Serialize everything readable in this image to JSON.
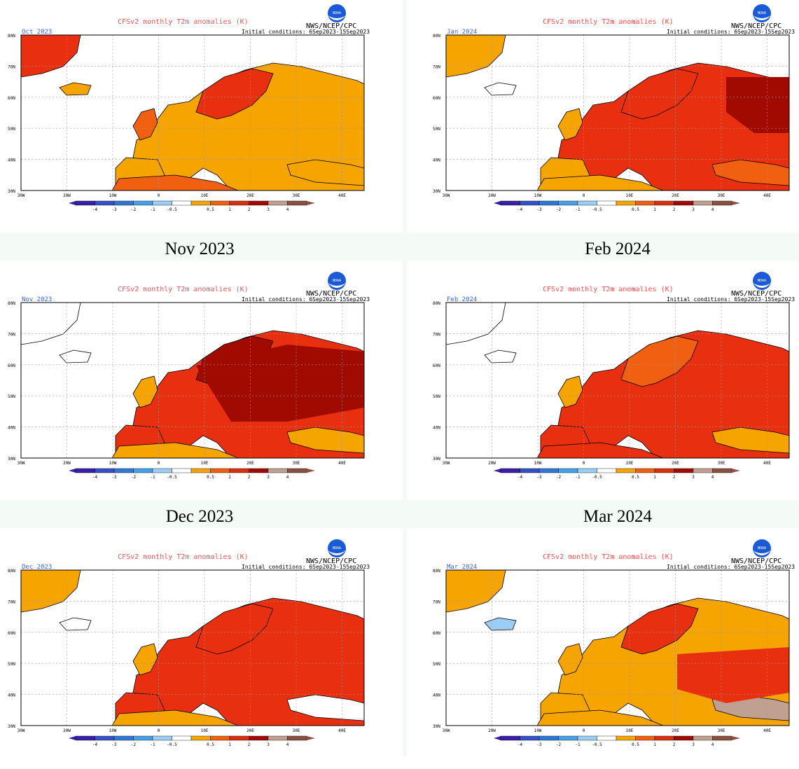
{
  "common": {
    "title": "CFSv2 monthly T2m anomalies (K)",
    "agency": "NWS/NCEP/CPC",
    "logo_text": "NOAA",
    "initial_conditions": "Initial conditions: 6Sep2023-15Sep2023",
    "lat_labels": [
      "80N",
      "70N",
      "60N",
      "50N",
      "40N",
      "30N"
    ],
    "lon_labels": [
      "30W",
      "20W",
      "10W",
      "0",
      "10E",
      "20E",
      "30E",
      "40E"
    ],
    "colorbar_labels": [
      "-4",
      "-3",
      "-2",
      "-1",
      "-0.5",
      "0.5",
      "1",
      "2",
      "3",
      "4"
    ],
    "colorbar_colors": [
      "#3a1fa8",
      "#3550c8",
      "#2f78d8",
      "#4aa0e8",
      "#9ccdf5",
      "#ffffff",
      "#f5a400",
      "#f06010",
      "#d83010",
      "#a00a00",
      "#c0a090",
      "#8a5040"
    ],
    "colors": {
      "title": "#ff5050",
      "month_label": "#3366ff",
      "frame": "#000000"
    }
  },
  "panels": [
    {
      "month": "Oct 2023",
      "caption": ""
    },
    {
      "month": "Jan 2024",
      "caption": ""
    },
    {
      "month": "Nov 2023",
      "caption": "Nov 2023"
    },
    {
      "month": "Feb 2024",
      "caption": "Feb 2024"
    },
    {
      "month": "Dec 2023",
      "caption": "Dec 2023"
    },
    {
      "month": "Mar 2024",
      "caption": "Mar 2024"
    }
  ]
}
